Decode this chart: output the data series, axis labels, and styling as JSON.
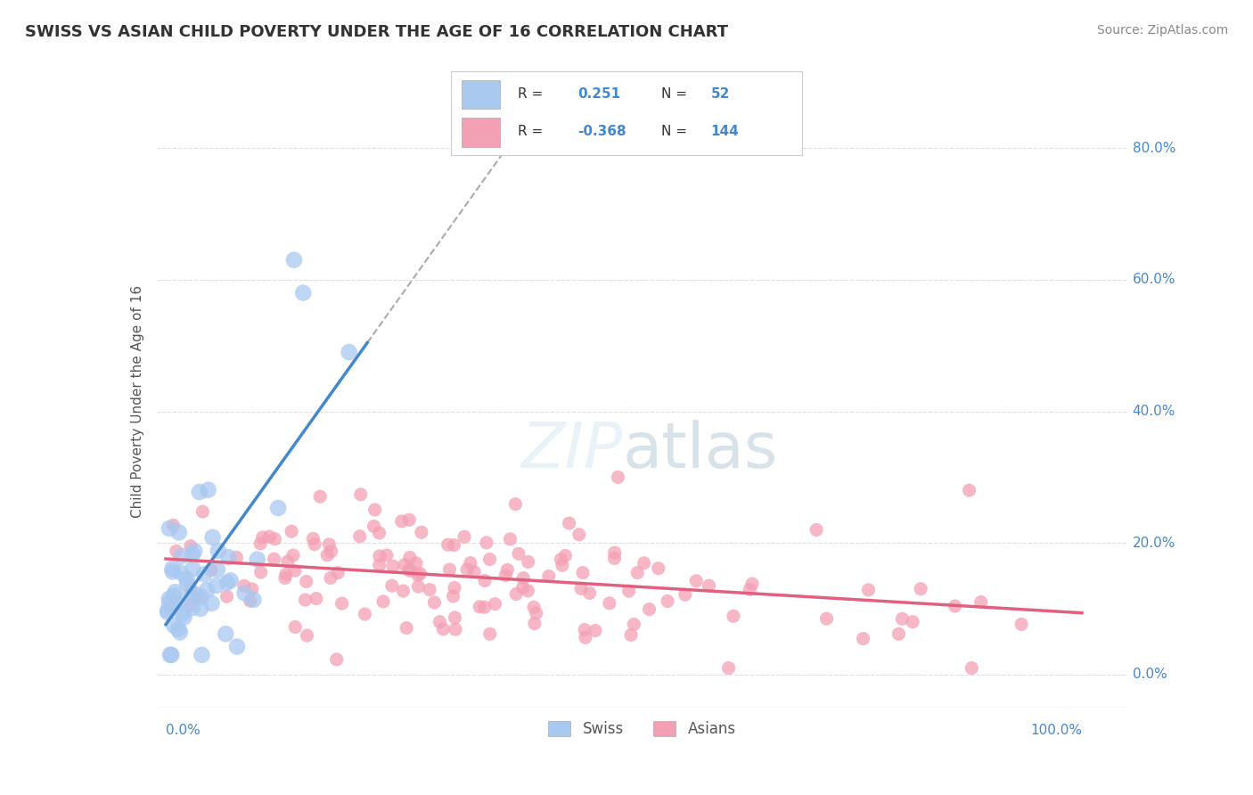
{
  "title": "SWISS VS ASIAN CHILD POVERTY UNDER THE AGE OF 16 CORRELATION CHART",
  "source": "Source: ZipAtlas.com",
  "ylabel": "Child Poverty Under the Age of 16",
  "legend_swiss": "Swiss",
  "legend_asians": "Asians",
  "swiss_R": 0.251,
  "swiss_N": 52,
  "asian_R": -0.368,
  "asian_N": 144,
  "swiss_color": "#a8c8f0",
  "asian_color": "#f4a0b4",
  "swiss_trend_color": "#4488cc",
  "asian_trend_color": "#e06080",
  "dashed_trend_color": "#aaaaaa",
  "background_color": "#ffffff",
  "grid_color": "#dddddd",
  "title_color": "#333333",
  "axis_color": "#4488cc"
}
